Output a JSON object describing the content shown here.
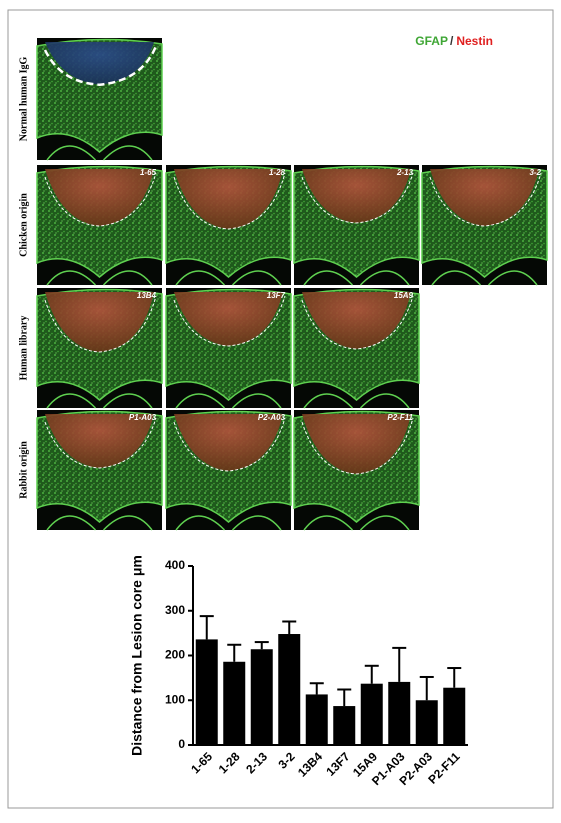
{
  "figure": {
    "legend": {
      "first": "GFAP",
      "separator": "/",
      "second": "Nestin"
    },
    "rows": [
      {
        "label": "Normal human IgG",
        "panels": []
      },
      {
        "label": "Chicken origin",
        "panels": [
          "1-65",
          "1-28",
          "2-13",
          "3-2"
        ]
      },
      {
        "label": "Human library",
        "panels": [
          "13B4",
          "13F7",
          "15A9"
        ]
      },
      {
        "label": "Rabbit origin",
        "panels": [
          "P1-A03",
          "P2-A03",
          "P2-F11"
        ]
      }
    ]
  },
  "chart_data": {
    "type": "bar",
    "y_label": "Distance from Lesion core μm",
    "categories": [
      "1-65",
      "1-28",
      "2-13",
      "3-2",
      "13B4",
      "13F7",
      "15A9",
      "P1-A03",
      "P2-A03",
      "P2-F11"
    ],
    "values": [
      236,
      186,
      214,
      248,
      113,
      87,
      137,
      141,
      100,
      128
    ],
    "errors": [
      52,
      38,
      16,
      28,
      25,
      37,
      40,
      76,
      52,
      44
    ],
    "color": "#000000",
    "ylim": [
      0,
      400
    ],
    "yticks": [
      0,
      100,
      200,
      300,
      400
    ]
  }
}
